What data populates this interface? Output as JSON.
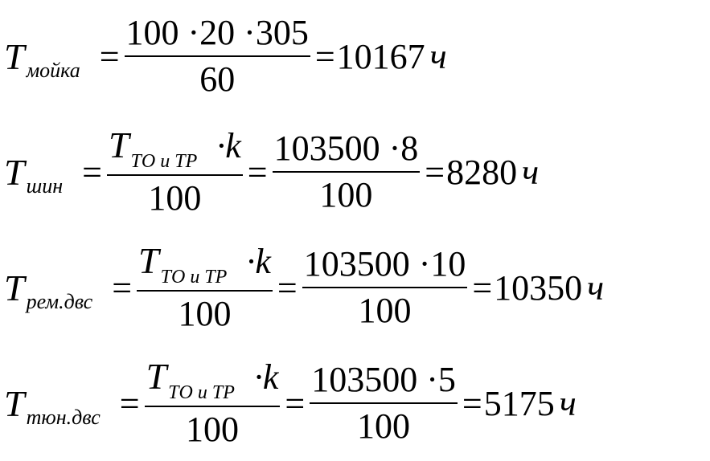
{
  "operator": "=",
  "equations": [
    {
      "symbol": "T",
      "subscript": "мойка",
      "fractions": [
        {
          "numerator": {
            "text": "100 ·20 ·305"
          },
          "denominator": "60"
        }
      ],
      "result": "10167",
      "unit": "ч"
    },
    {
      "symbol": "T",
      "subscript": "шин",
      "fractions": [
        {
          "numerator": {
            "symbol": "T",
            "subscript": "ТО и ТР",
            "factor": "·k"
          },
          "denominator": "100"
        },
        {
          "numerator": {
            "text": "103500 ·8"
          },
          "denominator": "100"
        }
      ],
      "result": "8280",
      "unit": "ч"
    },
    {
      "symbol": "T",
      "subscript": "рем.двс",
      "fractions": [
        {
          "numerator": {
            "symbol": "T",
            "subscript": "ТО и ТР",
            "factor": "·k"
          },
          "denominator": "100"
        },
        {
          "numerator": {
            "text": "103500 ·10"
          },
          "denominator": "100"
        }
      ],
      "result": "10350",
      "unit": "ч"
    },
    {
      "symbol": "T",
      "subscript": "тюн.двс",
      "fractions": [
        {
          "numerator": {
            "symbol": "T",
            "subscript": "ТО и ТР",
            "factor": "·k"
          },
          "denominator": "100"
        },
        {
          "numerator": {
            "text": "103500 ·5"
          },
          "denominator": "100"
        }
      ],
      "result": "5175",
      "unit": "ч"
    }
  ]
}
